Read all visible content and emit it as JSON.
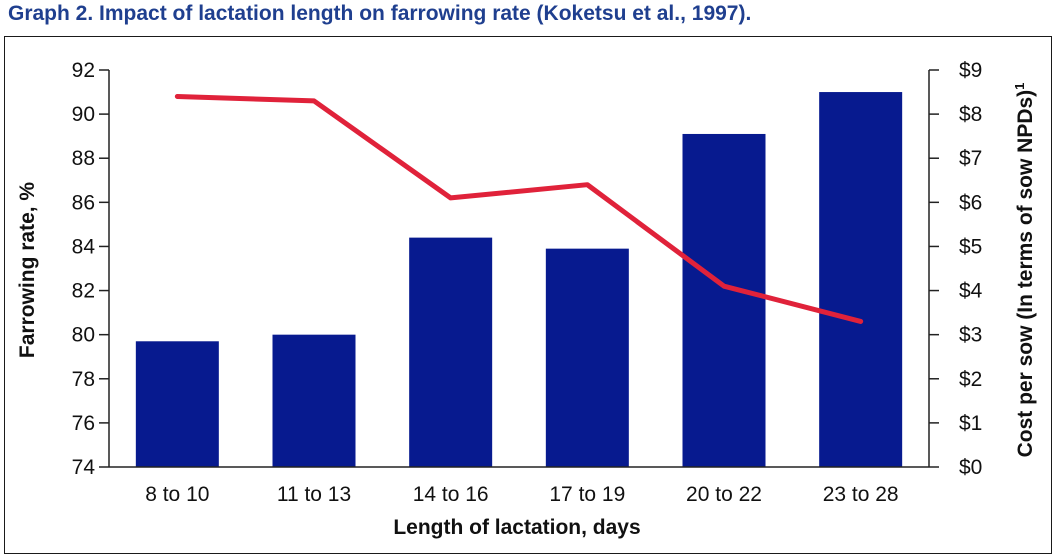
{
  "title": "Graph 2.  Impact of lactation length on farrowing rate (Koketsu et al., 1997).",
  "chart_data": {
    "type": "bar",
    "categories": [
      "8 to 10",
      "11 to 13",
      "14 to 16",
      "17 to 19",
      "20 to 22",
      "23 to 28"
    ],
    "xlabel": "Length of lactation, days",
    "ylabel": "Farrowing rate, %",
    "y2label": "Cost per sow (In terms of sow NPDs)",
    "y2label_superscript": "1",
    "ylim": [
      74,
      92
    ],
    "y2lim": [
      0,
      9
    ],
    "yticks": [
      "92",
      "90",
      "88",
      "86",
      "84",
      "82",
      "80",
      "78",
      "76",
      "74"
    ],
    "y2ticks": [
      "$9",
      "$8",
      "$7",
      "$6",
      "$5",
      "$4",
      "$3",
      "$2",
      "$1",
      "$0"
    ],
    "bar_values": [
      79.7,
      80.0,
      84.4,
      83.9,
      89.1,
      91.0
    ],
    "line_values": [
      8.4,
      8.3,
      6.1,
      6.4,
      4.1,
      3.3
    ],
    "bar_color": "#071a8f",
    "line_color": "#e0223a",
    "grid": false
  }
}
